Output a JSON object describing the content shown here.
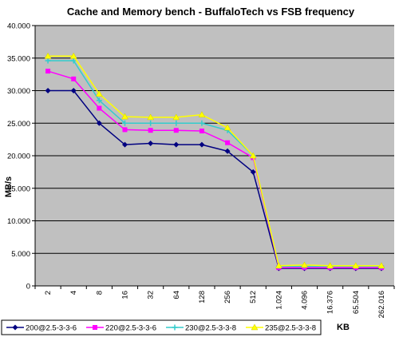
{
  "chart_data": {
    "type": "line",
    "title": "Cache and Memory bench - BuffaloTech vs FSB frequency",
    "xlabel": "KB",
    "ylabel": "MB/s",
    "categories": [
      "2",
      "4",
      "8",
      "16",
      "32",
      "64",
      "128",
      "256",
      "512",
      "1.024",
      "4.096",
      "16.376",
      "65.504",
      "262.016"
    ],
    "ylim": [
      0,
      40000
    ],
    "yticks": [
      0,
      5000,
      10000,
      15000,
      20000,
      25000,
      30000,
      35000,
      40000
    ],
    "ytick_labels": [
      "0",
      "5.000",
      "10.000",
      "15.000",
      "20.000",
      "25.000",
      "30.000",
      "35.000",
      "40.000"
    ],
    "grid": true,
    "legend_position": "bottom",
    "series": [
      {
        "name": "200@2.5-3-3-6",
        "color": "#000080",
        "marker": "diamond",
        "values": [
          30000,
          30000,
          25000,
          21700,
          21900,
          21700,
          21700,
          20700,
          17500,
          2700,
          2700,
          2700,
          2700,
          2700
        ]
      },
      {
        "name": "220@2.5-3-3-6",
        "color": "#ff00ff",
        "marker": "square",
        "values": [
          33000,
          31800,
          27300,
          24000,
          23900,
          23900,
          23800,
          22000,
          19700,
          2800,
          2800,
          2800,
          2800,
          2800
        ]
      },
      {
        "name": "230@2.5-3-3-8",
        "color": "#33cccc",
        "marker": "cross",
        "values": [
          34600,
          34600,
          28500,
          25000,
          25000,
          25000,
          25000,
          23900,
          20000,
          3000,
          3000,
          3000,
          3000,
          3000
        ]
      },
      {
        "name": "235@2.5-3-3-8",
        "color": "#ffff00",
        "marker": "triangle",
        "values": [
          35300,
          35300,
          29500,
          26000,
          25900,
          25900,
          26300,
          24300,
          20000,
          3100,
          3200,
          3100,
          3100,
          3100
        ]
      }
    ]
  }
}
